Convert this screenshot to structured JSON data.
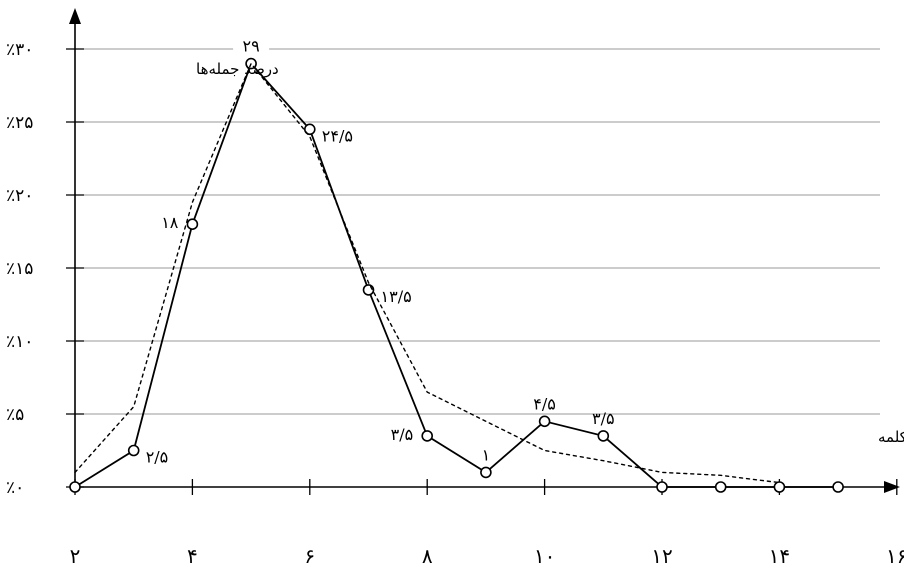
{
  "chart_data": {
    "type": "line",
    "title": "",
    "ylabel": "درصد جمله‌ها",
    "xlabel": "طول جمله‌های تشکیل دهنده به کلمه",
    "xlim": [
      2,
      16
    ],
    "ylim": [
      0,
      30
    ],
    "x_ticks": [
      {
        "value": 2,
        "label": "۲"
      },
      {
        "value": 4,
        "label": "۴"
      },
      {
        "value": 6,
        "label": "۶"
      },
      {
        "value": 8,
        "label": "۸"
      },
      {
        "value": 10,
        "label": "۱۰"
      },
      {
        "value": 12,
        "label": "۱۲"
      },
      {
        "value": 14,
        "label": "۱۴"
      },
      {
        "value": 16,
        "label": "۱۶"
      }
    ],
    "y_ticks": [
      {
        "value": 0,
        "label": "٪۰"
      },
      {
        "value": 5,
        "label": "٪۵"
      },
      {
        "value": 10,
        "label": "٪۱۰"
      },
      {
        "value": 15,
        "label": "٪۱۵"
      },
      {
        "value": 20,
        "label": "٪۲۰"
      },
      {
        "value": 25,
        "label": "٪۲۵"
      },
      {
        "value": 30,
        "label": "٪۳۰"
      }
    ],
    "grid": true,
    "series": [
      {
        "style": "solid",
        "markers": "circle",
        "x": [
          2,
          3,
          4,
          5,
          6,
          7,
          8,
          9,
          10,
          11,
          12,
          13,
          14,
          15
        ],
        "y": [
          0,
          2.5,
          18,
          29,
          24.5,
          13.5,
          3.5,
          1,
          4.5,
          3.5,
          0,
          0,
          0,
          0
        ]
      },
      {
        "style": "dotted",
        "markers": "none",
        "x": [
          2,
          3,
          4,
          5,
          6,
          7,
          8,
          9,
          10,
          11,
          12,
          13,
          14
        ],
        "y": [
          1,
          5.5,
          19.5,
          29,
          24,
          14,
          6.5,
          4.5,
          2.5,
          1.8,
          1,
          0.8,
          0.3
        ]
      }
    ],
    "data_labels": [
      {
        "x": 3,
        "y": 2.5,
        "text": "۲/۵",
        "pos": "right"
      },
      {
        "x": 4,
        "y": 18,
        "text": "۱۸",
        "pos": "left"
      },
      {
        "x": 5,
        "y": 29,
        "text": "۲۹",
        "pos": "top"
      },
      {
        "x": 6,
        "y": 24.5,
        "text": "۲۴/۵",
        "pos": "right"
      },
      {
        "x": 7,
        "y": 13.5,
        "text": "۱۳/۵",
        "pos": "right"
      },
      {
        "x": 8,
        "y": 3.5,
        "text": "۳/۵",
        "pos": "left"
      },
      {
        "x": 9,
        "y": 1,
        "text": "۱",
        "pos": "top"
      },
      {
        "x": 10,
        "y": 4.5,
        "text": "۴/۵",
        "pos": "top"
      },
      {
        "x": 11,
        "y": 3.5,
        "text": "۳/۵",
        "pos": "top"
      }
    ]
  }
}
